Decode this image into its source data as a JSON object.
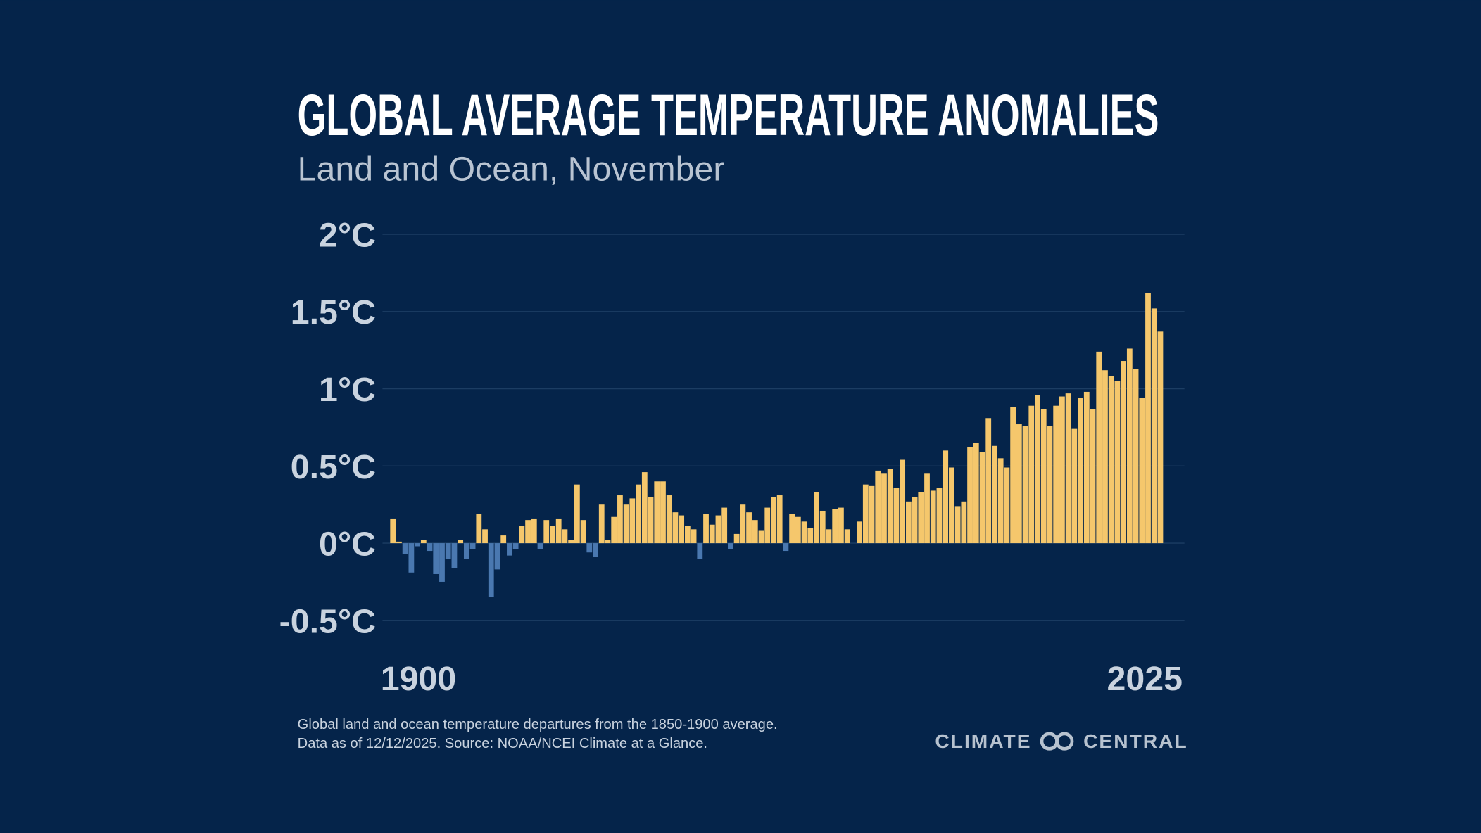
{
  "chart_data": {
    "type": "bar",
    "title": "GLOBAL AVERAGE TEMPERATURE ANOMALIES",
    "subtitle": "Land and Ocean, November",
    "categories": [
      "1900",
      null,
      null,
      null,
      null,
      null,
      null,
      null,
      null,
      null,
      null,
      null,
      null,
      null,
      null,
      null,
      null,
      null,
      null,
      null,
      null,
      null,
      null,
      null,
      null,
      null,
      null,
      null,
      null,
      null,
      null,
      null,
      null,
      null,
      null,
      null,
      null,
      null,
      null,
      null,
      null,
      null,
      null,
      null,
      null,
      null,
      null,
      null,
      null,
      null,
      null,
      null,
      null,
      null,
      null,
      null,
      null,
      null,
      null,
      null,
      null,
      null,
      null,
      null,
      null,
      null,
      null,
      null,
      null,
      null,
      null,
      null,
      null,
      null,
      null,
      null,
      null,
      null,
      null,
      null,
      null,
      null,
      null,
      null,
      null,
      null,
      null,
      null,
      null,
      null,
      null,
      null,
      null,
      null,
      null,
      null,
      null,
      null,
      null,
      null,
      null,
      null,
      null,
      null,
      null,
      null,
      null,
      null,
      null,
      null,
      null,
      null,
      null,
      null,
      null,
      null,
      null,
      null,
      null,
      null,
      null,
      null,
      null,
      null,
      null,
      "2025"
    ],
    "values": [
      0.16,
      0.01,
      -0.07,
      -0.19,
      -0.02,
      0.02,
      -0.05,
      -0.2,
      -0.25,
      -0.1,
      -0.16,
      0.02,
      -0.1,
      -0.04,
      0.19,
      0.09,
      -0.35,
      -0.17,
      0.05,
      -0.08,
      -0.04,
      0.11,
      0.15,
      0.16,
      -0.04,
      0.15,
      0.11,
      0.16,
      0.09,
      0.02,
      0.38,
      0.15,
      -0.06,
      -0.09,
      0.25,
      0.02,
      0.17,
      0.31,
      0.25,
      0.29,
      0.38,
      0.46,
      0.3,
      0.4,
      0.4,
      0.31,
      0.2,
      0.18,
      0.11,
      0.09,
      -0.1,
      0.19,
      0.12,
      0.18,
      0.23,
      -0.04,
      0.06,
      0.25,
      0.2,
      0.15,
      0.08,
      0.23,
      0.3,
      0.31,
      -0.05,
      0.19,
      0.17,
      0.14,
      0.1,
      0.33,
      0.21,
      0.09,
      0.22,
      0.23,
      0.09,
      0,
      0.14,
      0.38,
      0.37,
      0.47,
      0.45,
      0.48,
      0.36,
      0.54,
      0.27,
      0.3,
      0.33,
      0.45,
      0.34,
      0.36,
      0.6,
      0.49,
      0.24,
      0.27,
      0.62,
      0.65,
      0.59,
      0.81,
      0.63,
      0.55,
      0.49,
      0.88,
      0.77,
      0.76,
      0.89,
      0.96,
      0.87,
      0.76,
      0.89,
      0.95,
      0.97,
      0.74,
      0.94,
      0.98,
      0.87,
      1.24,
      1.12,
      1.08,
      1.05,
      1.18,
      1.26,
      1.13,
      0.94,
      1.62,
      1.52,
      1.37
    ],
    "colors": {
      "positive": "#f5c76c",
      "negative": "#4a78b0"
    },
    "ylim": [
      -0.5,
      2
    ],
    "yticks": [
      {
        "value": -0.5,
        "label": "-0.5°C"
      },
      {
        "value": 0,
        "label": "0°C"
      },
      {
        "value": 0.5,
        "label": "0.5°C"
      },
      {
        "value": 1,
        "label": "1°C"
      },
      {
        "value": 1.5,
        "label": "1.5°C"
      },
      {
        "value": 2,
        "label": "2°C"
      }
    ],
    "grid": true,
    "notes": [
      "Global land and ocean temperature departures from the 1850-1900 average.",
      "Data as of 12/12/2025. Source: NOAA/NCEI Climate at a Glance."
    ],
    "brand": [
      "CLIMATE",
      "CENTRAL"
    ]
  }
}
